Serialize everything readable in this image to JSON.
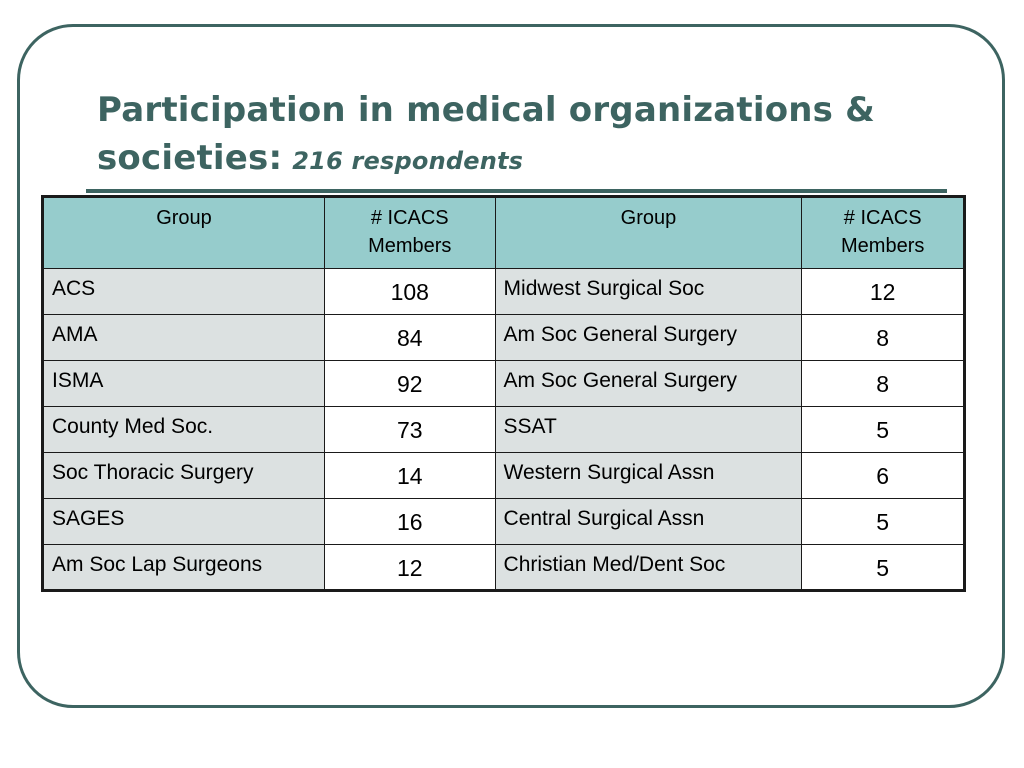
{
  "slide": {
    "title": "Participation in medical organizations & societies:",
    "subtitle": "216 respondents",
    "colors": {
      "accent": "#3d6461",
      "header_fill": "#96cccc",
      "name_cell_fill": "#dce1e1",
      "number_cell_fill": "#ffffff",
      "table_border": "#1a1a1a"
    }
  },
  "table": {
    "headers": [
      "Group",
      "# ICACS Members",
      "Group",
      "# ICACS Members"
    ],
    "rows": [
      [
        "ACS",
        "108",
        "Midwest Surgical Soc",
        "12"
      ],
      [
        "AMA",
        "84",
        "Am Soc General Surgery",
        "8"
      ],
      [
        "ISMA",
        "92",
        "Am Soc General Surgery",
        "8"
      ],
      [
        "County Med Soc.",
        "73",
        "SSAT",
        "5"
      ],
      [
        "Soc Thoracic Surgery",
        "14",
        "Western Surgical Assn",
        "6"
      ],
      [
        "SAGES",
        "16",
        "Central Surgical Assn",
        "5"
      ],
      [
        "Am Soc Lap Surgeons",
        "12",
        "Christian Med/Dent Soc",
        "5"
      ]
    ]
  }
}
